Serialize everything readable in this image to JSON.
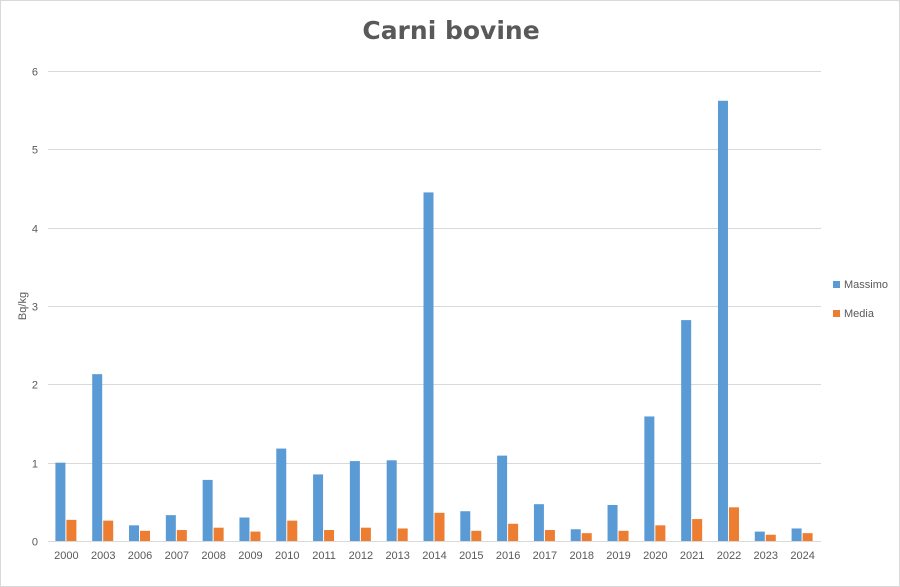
{
  "chart_data": {
    "type": "bar",
    "title": "Carni bovine",
    "xlabel": "",
    "ylabel": "Bq/kg",
    "ylim": [
      0,
      6
    ],
    "yticks": [
      0,
      1,
      2,
      3,
      4,
      5,
      6
    ],
    "grid": true,
    "legend_position": "right",
    "categories": [
      "2000",
      "2003",
      "2006",
      "2007",
      "2008",
      "2009",
      "2010",
      "2011",
      "2012",
      "2013",
      "2014",
      "2015",
      "2016",
      "2017",
      "2018",
      "2019",
      "2020",
      "2021",
      "2022",
      "2023",
      "2024"
    ],
    "series": [
      {
        "name": "Massimo",
        "color": "#5b9bd5",
        "values": [
          1.0,
          2.13,
          0.2,
          0.33,
          0.78,
          0.3,
          1.18,
          0.85,
          1.02,
          1.03,
          4.45,
          0.38,
          1.09,
          0.47,
          0.15,
          0.46,
          1.59,
          2.82,
          5.62,
          0.12,
          0.16
        ]
      },
      {
        "name": "Media",
        "color": "#ed7d31",
        "values": [
          0.27,
          0.26,
          0.13,
          0.14,
          0.17,
          0.12,
          0.26,
          0.14,
          0.17,
          0.16,
          0.36,
          0.13,
          0.22,
          0.14,
          0.1,
          0.13,
          0.2,
          0.28,
          0.43,
          0.08,
          0.1
        ]
      }
    ]
  }
}
